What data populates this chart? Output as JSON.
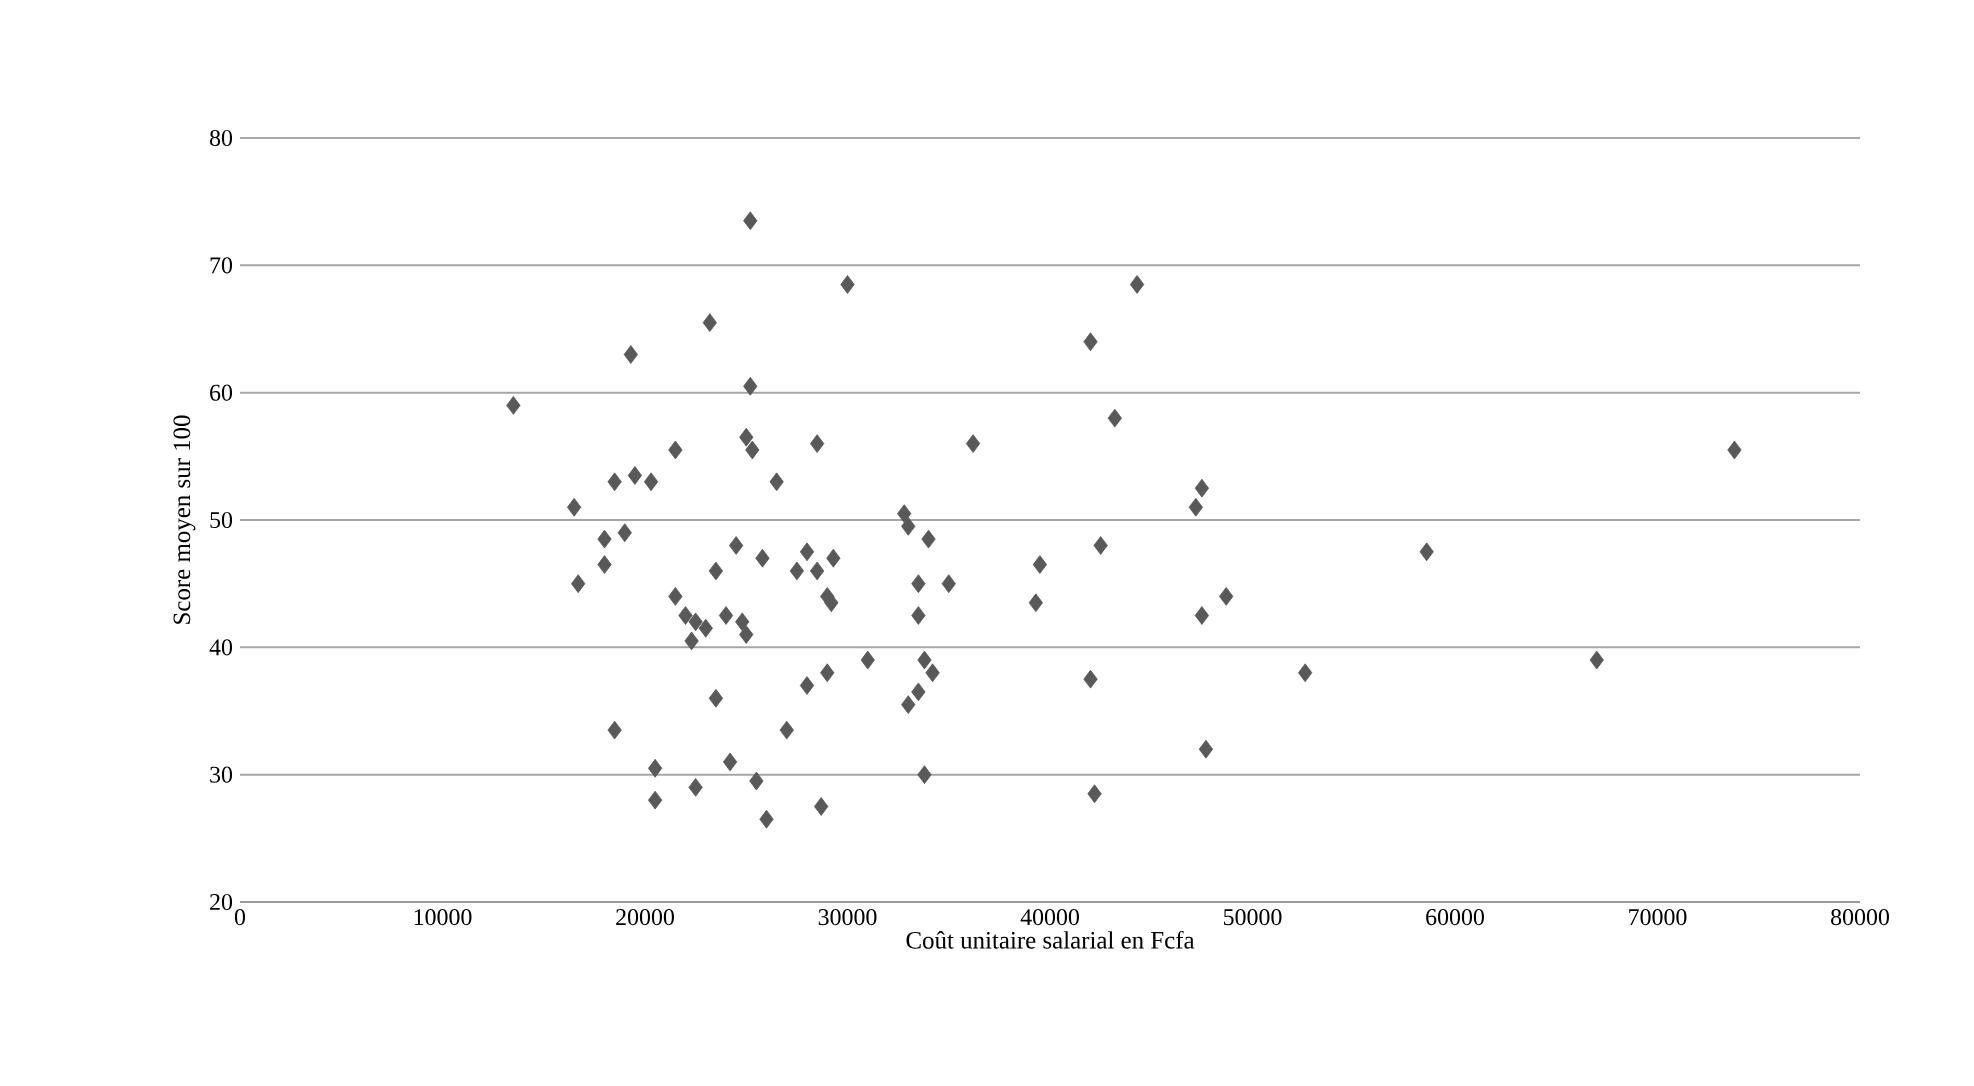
{
  "chart_data": {
    "type": "scatter",
    "xlabel": "Coût unitaire salarial en Fcfa",
    "ylabel": "Score moyen sur 100",
    "xlim": [
      0,
      80000
    ],
    "ylim": [
      20,
      80
    ],
    "xticks": [
      0,
      10000,
      20000,
      30000,
      40000,
      50000,
      60000,
      70000,
      80000
    ],
    "yticks": [
      20,
      30,
      40,
      50,
      60,
      70,
      80
    ],
    "grid": "y",
    "marker": "diamond",
    "series": [
      {
        "color": "#595959",
        "x": [
          13500,
          16500,
          16700,
          18000,
          18000,
          18500,
          18500,
          19000,
          19300,
          19500,
          20300,
          20500,
          20500,
          21500,
          21500,
          22000,
          22300,
          22500,
          22500,
          23200,
          23500,
          23500,
          23000,
          24000,
          24200,
          24500,
          24800,
          25000,
          25200,
          25000,
          25300,
          25200,
          25500,
          25800,
          26000,
          26500,
          27000,
          27500,
          28000,
          28000,
          28500,
          28500,
          28700,
          29000,
          29000,
          29200,
          29300,
          30000,
          31000,
          32800,
          33000,
          33000,
          33500,
          33500,
          33500,
          33800,
          33800,
          34000,
          34200,
          35000,
          36200,
          39300,
          39500,
          42000,
          42000,
          42200,
          42500,
          43200,
          44300,
          47200,
          47500,
          47500,
          47700,
          48700,
          52600,
          58600,
          67000,
          73800
        ],
        "values": [
          59,
          51,
          45,
          48.5,
          46.5,
          53,
          33.5,
          49,
          63,
          53.5,
          53,
          30.5,
          28,
          55.5,
          44,
          42.5,
          40.5,
          29,
          42,
          65.5,
          46,
          36,
          41.5,
          42.5,
          31,
          48,
          42,
          41,
          60.5,
          56.5,
          55.5,
          73.5,
          29.5,
          47,
          26.5,
          53,
          33.5,
          46,
          47.5,
          37,
          46,
          56,
          27.5,
          44,
          38,
          43.5,
          47,
          68.5,
          39,
          50.5,
          49.5,
          35.5,
          45,
          42.5,
          36.5,
          39,
          30,
          48.5,
          38,
          45,
          56,
          43.5,
          46.5,
          64,
          37.5,
          28.5,
          48,
          58,
          68.5,
          51,
          52.5,
          42.5,
          32,
          44,
          38,
          47.5,
          39,
          55.5
        ]
      }
    ]
  }
}
